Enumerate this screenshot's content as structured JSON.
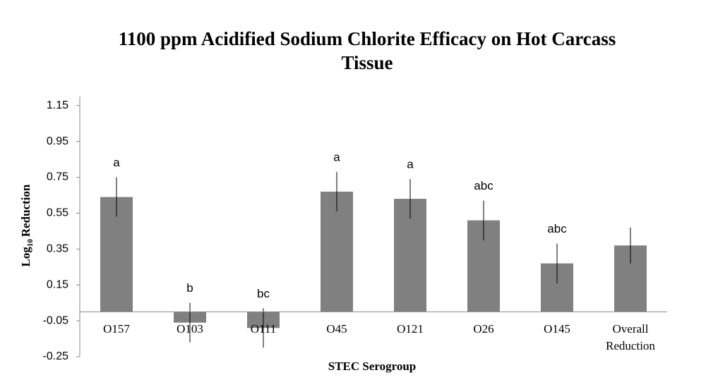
{
  "chart_data": {
    "type": "bar",
    "title": "1100 ppm Acidified Sodium Chlorite Efficacy on Hot Carcass Tissue",
    "xlabel": "STEC Serogroup",
    "ylabel": [
      "Log",
      "10",
      "Reduction"
    ],
    "categories": [
      "O157",
      "O103",
      "O111",
      "O45",
      "O121",
      "O26",
      "O145",
      "Overall Reduction"
    ],
    "values": [
      0.64,
      -0.06,
      -0.09,
      0.67,
      0.63,
      0.51,
      0.27,
      0.37
    ],
    "errors": [
      0.11,
      0.11,
      0.11,
      0.11,
      0.11,
      0.11,
      0.11,
      0.1
    ],
    "annotations": [
      "a",
      "b",
      "bc",
      "a",
      "a",
      "abc",
      "abc",
      null
    ],
    "color": "#808080",
    "ylim": [
      -0.25,
      1.2
    ],
    "yticks": [
      -0.25,
      -0.05,
      0.15,
      0.35,
      0.55,
      0.75,
      0.95,
      1.15
    ],
    "grid": false
  }
}
